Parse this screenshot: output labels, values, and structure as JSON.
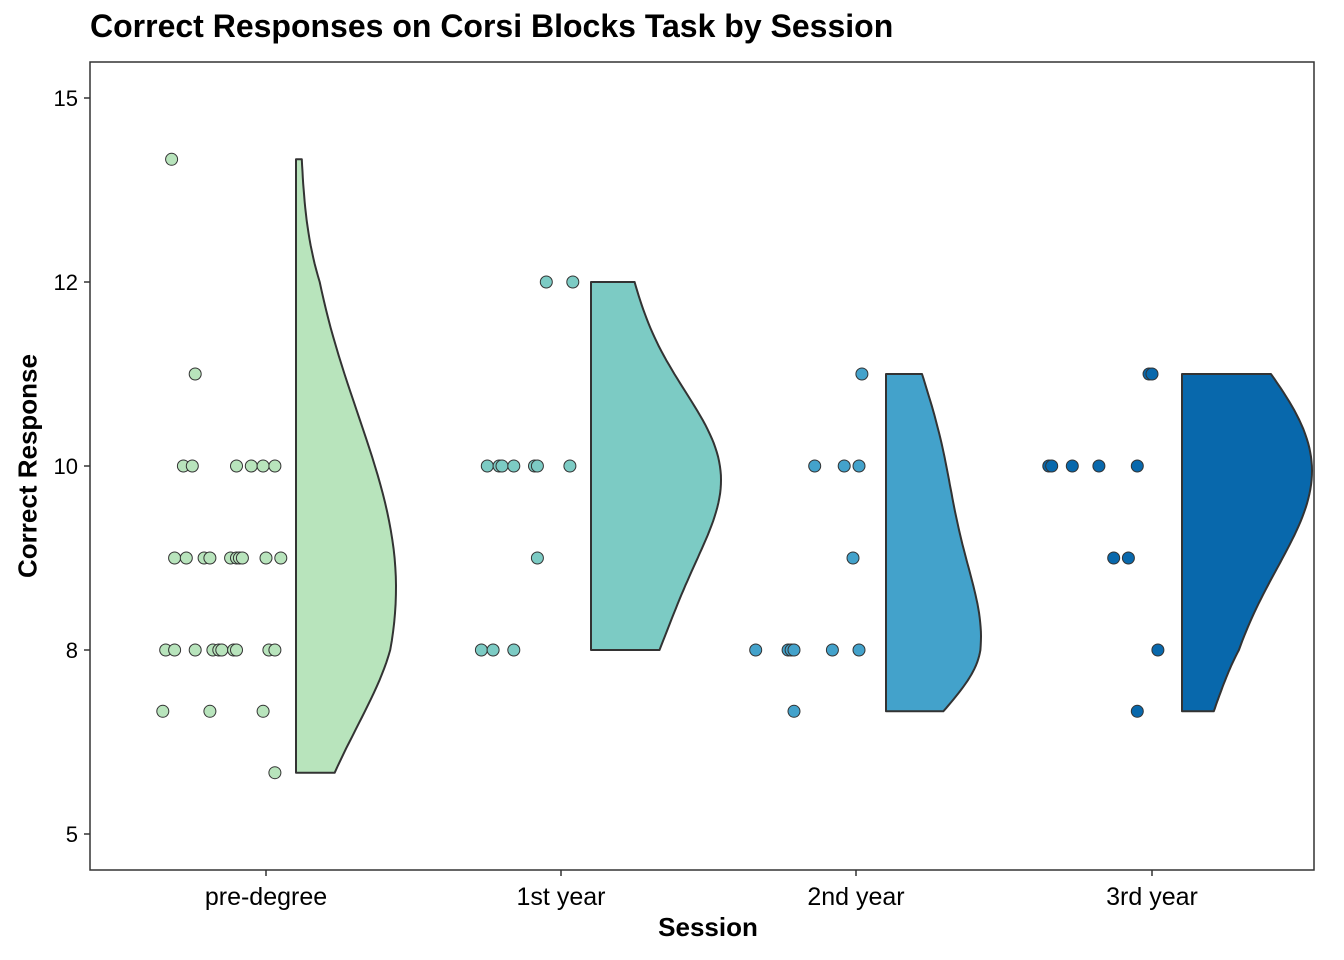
{
  "chart_data": {
    "type": "raincloud",
    "title": "Correct Responses on Corsi Blocks Task by Session",
    "xlabel": "Session",
    "ylabel": "Correct Response",
    "ylim": [
      4.5,
      15.5
    ],
    "yticks": [
      5,
      8,
      10,
      12,
      15
    ],
    "grid": false,
    "legend": "none",
    "categories": [
      "pre-degree",
      "1st year",
      "2nd year",
      "3rd year"
    ],
    "series": [
      {
        "category": "pre-degree",
        "color": "#b8e4bc",
        "points": [
          {
            "x": -0.32,
            "y": 14
          },
          {
            "x": -0.24,
            "y": 11
          },
          {
            "x": -0.28,
            "y": 10
          },
          {
            "x": -0.25,
            "y": 10
          },
          {
            "x": -0.1,
            "y": 10
          },
          {
            "x": -0.05,
            "y": 10
          },
          {
            "x": -0.01,
            "y": 10
          },
          {
            "x": 0.03,
            "y": 10
          },
          {
            "x": -0.31,
            "y": 9
          },
          {
            "x": -0.27,
            "y": 9
          },
          {
            "x": -0.21,
            "y": 9
          },
          {
            "x": -0.19,
            "y": 9
          },
          {
            "x": -0.12,
            "y": 9
          },
          {
            "x": -0.1,
            "y": 9
          },
          {
            "x": -0.09,
            "y": 9
          },
          {
            "x": -0.08,
            "y": 9
          },
          {
            "x": 0.0,
            "y": 9
          },
          {
            "x": 0.05,
            "y": 9
          },
          {
            "x": -0.34,
            "y": 8
          },
          {
            "x": -0.31,
            "y": 8
          },
          {
            "x": -0.24,
            "y": 8
          },
          {
            "x": -0.18,
            "y": 8
          },
          {
            "x": -0.16,
            "y": 8
          },
          {
            "x": -0.15,
            "y": 8
          },
          {
            "x": -0.11,
            "y": 8
          },
          {
            "x": -0.1,
            "y": 8
          },
          {
            "x": 0.01,
            "y": 8
          },
          {
            "x": 0.03,
            "y": 8
          },
          {
            "x": -0.35,
            "y": 7
          },
          {
            "x": -0.19,
            "y": 7
          },
          {
            "x": -0.01,
            "y": 7
          },
          {
            "x": 0.03,
            "y": 6
          }
        ],
        "density_range": [
          6,
          14
        ],
        "density_mode": 8.6
      },
      {
        "category": "1st year",
        "color": "#7ccbc4",
        "points": [
          {
            "x": -0.05,
            "y": 12
          },
          {
            "x": 0.04,
            "y": 12
          },
          {
            "x": -0.25,
            "y": 10
          },
          {
            "x": -0.21,
            "y": 10
          },
          {
            "x": -0.2,
            "y": 10
          },
          {
            "x": -0.16,
            "y": 10
          },
          {
            "x": -0.09,
            "y": 10
          },
          {
            "x": -0.08,
            "y": 10
          },
          {
            "x": 0.03,
            "y": 10
          },
          {
            "x": -0.08,
            "y": 9
          },
          {
            "x": -0.27,
            "y": 8
          },
          {
            "x": -0.23,
            "y": 8
          },
          {
            "x": -0.16,
            "y": 8
          }
        ],
        "density_range": [
          8,
          12
        ],
        "density_mode": 10
      },
      {
        "category": "2nd year",
        "color": "#43a2cb",
        "points": [
          {
            "x": 0.02,
            "y": 11
          },
          {
            "x": -0.14,
            "y": 10
          },
          {
            "x": -0.04,
            "y": 10
          },
          {
            "x": 0.01,
            "y": 10
          },
          {
            "x": -0.01,
            "y": 9
          },
          {
            "x": -0.34,
            "y": 8
          },
          {
            "x": -0.23,
            "y": 8
          },
          {
            "x": -0.22,
            "y": 8
          },
          {
            "x": -0.21,
            "y": 8
          },
          {
            "x": -0.08,
            "y": 8
          },
          {
            "x": 0.01,
            "y": 8
          },
          {
            "x": -0.21,
            "y": 7
          }
        ],
        "density_range": [
          7,
          11
        ],
        "density_mode": 8.6
      },
      {
        "category": "3rd year",
        "color": "#0868ac",
        "points": [
          {
            "x": -0.01,
            "y": 11
          },
          {
            "x": 0.0,
            "y": 11
          },
          {
            "x": -0.35,
            "y": 10
          },
          {
            "x": -0.34,
            "y": 10
          },
          {
            "x": -0.27,
            "y": 10
          },
          {
            "x": -0.18,
            "y": 10
          },
          {
            "x": -0.05,
            "y": 10
          },
          {
            "x": -0.13,
            "y": 9
          },
          {
            "x": -0.08,
            "y": 9
          },
          {
            "x": 0.02,
            "y": 8
          },
          {
            "x": -0.05,
            "y": 7
          }
        ],
        "density_range": [
          7,
          11
        ],
        "density_mode": 9.75
      }
    ]
  }
}
